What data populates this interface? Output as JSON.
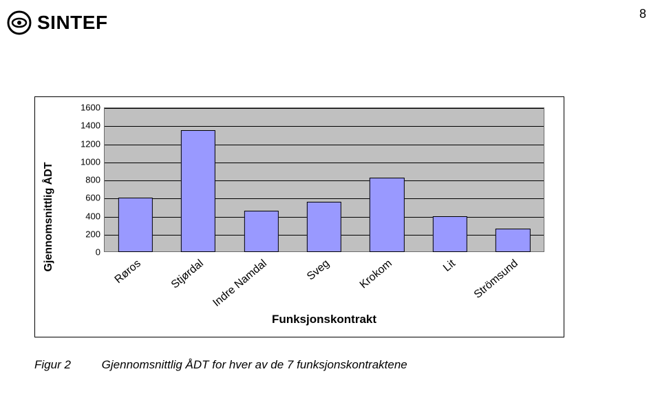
{
  "page_number": "8",
  "logo": {
    "text": "SINTEF"
  },
  "chart": {
    "type": "bar",
    "ylabel": "Gjennomsnittlig ÅDT",
    "xlabel": "Funksjonskontrakt",
    "ylim": [
      0,
      1600
    ],
    "ytick_step": 200,
    "yticks": [
      0,
      200,
      400,
      600,
      800,
      1000,
      1200,
      1400,
      1600
    ],
    "categories": [
      "Røros",
      "Stjørdal",
      "Indre Namdal",
      "Sveg",
      "Krokom",
      "Lit",
      "Strömsund"
    ],
    "values": [
      600,
      1350,
      460,
      560,
      820,
      400,
      260
    ],
    "bar_color": "#9999ff",
    "bar_border_color": "#000000",
    "plot_background": "#c0c0c0",
    "grid_color": "#000000",
    "bar_width": 0.55,
    "label_font_size": 16,
    "tick_font_size": 13,
    "xlabel_rotation_deg": -40
  },
  "caption": {
    "label": "Figur 2",
    "text": "Gjennomsnittlig ÅDT for hver av de 7 funksjonskontraktene"
  }
}
